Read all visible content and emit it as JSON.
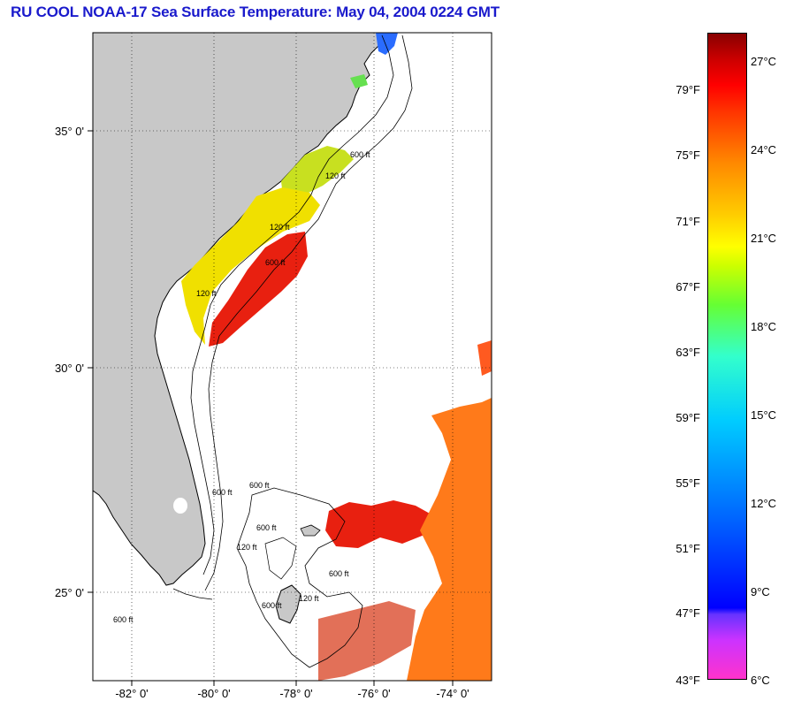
{
  "title": "RU COOL  NOAA-17  Sea Surface Temperature:  May 04, 2004 0224 GMT",
  "map": {
    "lat_ticks": [
      "35° 0'",
      "30° 0'",
      "25° 0'"
    ],
    "lon_ticks": [
      "-82° 0'",
      "-80° 0'",
      "-78° 0'",
      "-76° 0'",
      "-74° 0'"
    ],
    "contour_labels": [
      "600 ft",
      "120 ft",
      "120 ft",
      "600 ft",
      "120 ft",
      "600 ft",
      "600 ft",
      "600 ft",
      "120 ft",
      "600 ft",
      "600 ft",
      "120 ft",
      "600 ft"
    ],
    "colors": {
      "land": "#c8c8c8",
      "ocean_nodata": "#ffffff"
    }
  },
  "colorbar": {
    "fahrenheit_labels": [
      "79°F",
      "75°F",
      "71°F",
      "67°F",
      "63°F",
      "59°F",
      "55°F",
      "51°F",
      "47°F",
      "43°F"
    ],
    "celsius_labels": [
      "27°C",
      "24°C",
      "21°C",
      "18°C",
      "15°C",
      "12°C",
      "9°C",
      "6°C"
    ],
    "min_f": 43,
    "max_c": 28
  }
}
